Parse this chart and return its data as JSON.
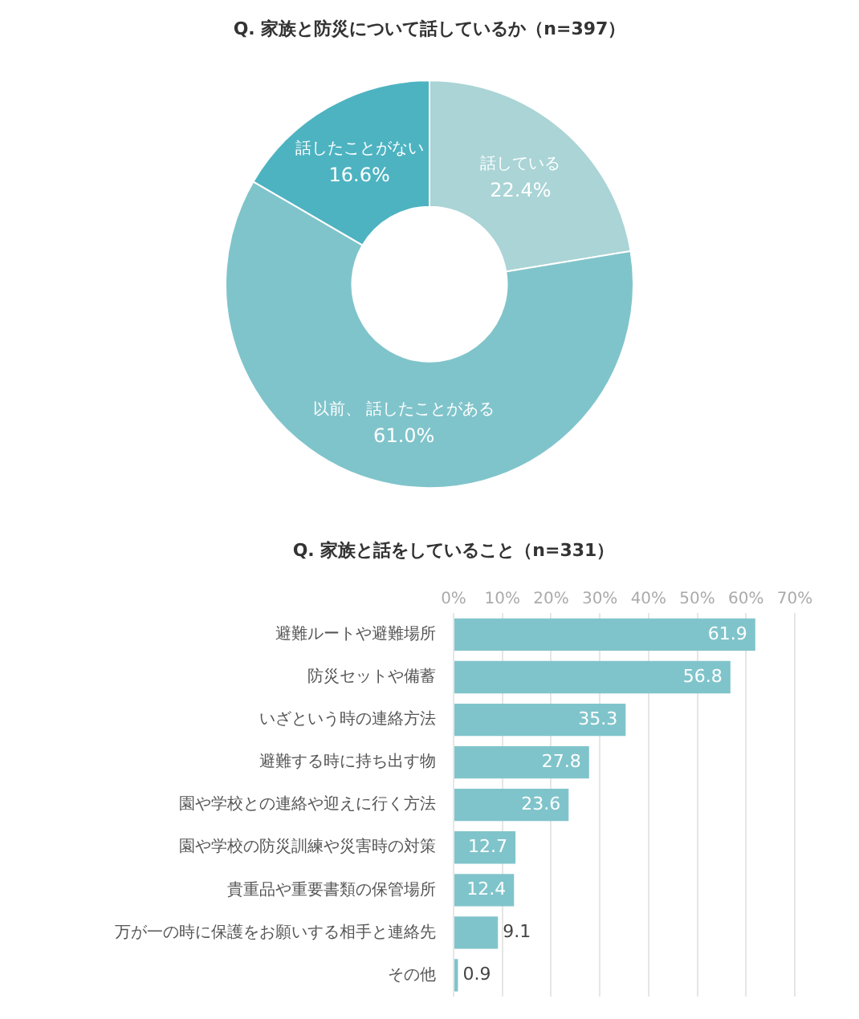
{
  "chart_data": [
    {
      "type": "donut",
      "title": "Q. 家族と防災について話しているか（n=397）",
      "categories": [
        "話している",
        "以前、 話したことがある",
        "話したことがない"
      ],
      "values": [
        22.4,
        61.0,
        16.6
      ],
      "value_labels": [
        "22.4%",
        "61.0%",
        "16.6%"
      ],
      "colors": [
        "#aad4d6",
        "#80c4cb",
        "#4db3c1"
      ],
      "legend": false
    },
    {
      "type": "bar",
      "orientation": "horizontal",
      "title": "Q. 家族と話をしていること（n=331）",
      "categories": [
        "避難ルートや避難場所",
        "防災セットや備蓄",
        "いざという時の連絡方法",
        "避難する時に持ち出す物",
        "園や学校との連絡や迎えに行く方法",
        "園や学校の防災訓練や災害時の対策",
        "貴重品や重要書類の保管場所",
        "万が一の時に保護をお願いする相手と連絡先",
        "その他"
      ],
      "values": [
        61.9,
        56.8,
        35.3,
        27.8,
        23.6,
        12.7,
        12.4,
        9.1,
        0.9
      ],
      "color": "#80c4cb",
      "xlim": [
        0,
        70
      ],
      "xticks": [
        {
          "value": 0,
          "label": "0%"
        },
        {
          "value": 10,
          "label": "10%"
        },
        {
          "value": 20,
          "label": "20%"
        },
        {
          "value": 30,
          "label": "30%"
        },
        {
          "value": 40,
          "label": "40%"
        },
        {
          "value": 50,
          "label": "50%"
        },
        {
          "value": 60,
          "label": "60%"
        },
        {
          "value": 70,
          "label": "70%"
        }
      ],
      "grid": "x",
      "data_labels": true,
      "legend": false
    }
  ]
}
